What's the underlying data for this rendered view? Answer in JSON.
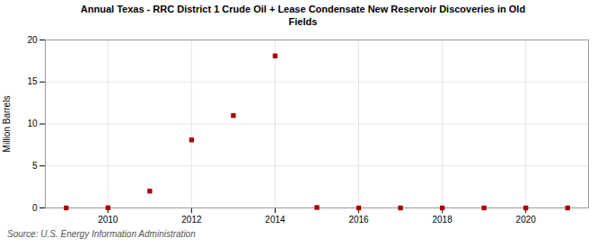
{
  "chart_data": {
    "type": "scatter",
    "title": "Annual Texas - RRC District 1 Crude Oil + Lease Condensate New Reservoir Discoveries in Old\nFields",
    "ylabel": "Million Barrels",
    "source": "Source: U.S. Energy Information Administration",
    "x": [
      2009,
      2010,
      2011,
      2012,
      2013,
      2014,
      2015,
      2016,
      2017,
      2018,
      2019,
      2020,
      2021
    ],
    "values": [
      0.0,
      0.02,
      2.0,
      8.1,
      11.0,
      18.1,
      0.05,
      0.0,
      0.0,
      0.0,
      0.0,
      0.0,
      0.0
    ],
    "color": "#aa0000",
    "marker": "square",
    "xlim": [
      2008.5,
      2021.5
    ],
    "xticks": [
      2010,
      2012,
      2014,
      2016,
      2018,
      2020
    ],
    "ylim": [
      0,
      20
    ],
    "yticks": [
      0,
      5,
      10,
      15,
      20
    ],
    "grid": true
  }
}
